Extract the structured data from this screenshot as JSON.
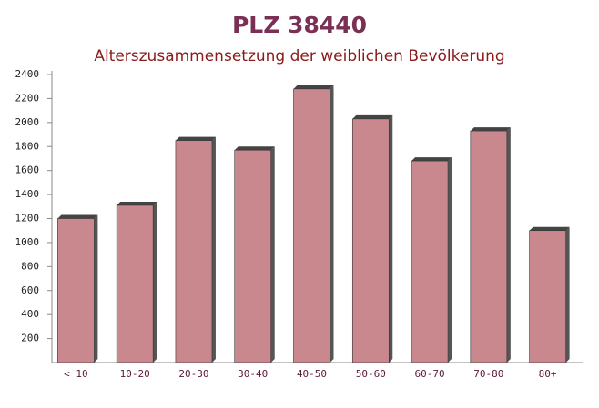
{
  "chart_data": {
    "type": "bar",
    "title": "PLZ 38440",
    "subtitle": "Alterszusammensetzung der weiblichen Bevölkerung",
    "categories": [
      "< 10",
      "10-20",
      "20-30",
      "30-40",
      "40-50",
      "50-60",
      "60-70",
      "70-80",
      "80+"
    ],
    "values": [
      1200,
      1310,
      1850,
      1770,
      2280,
      2030,
      1680,
      1930,
      1100
    ],
    "color": "#c0737a",
    "ylim": [
      0,
      2400
    ],
    "yticks": [
      200,
      400,
      600,
      800,
      1000,
      1200,
      1400,
      1600,
      1800,
      2000,
      2200,
      2400
    ],
    "grid": false
  }
}
